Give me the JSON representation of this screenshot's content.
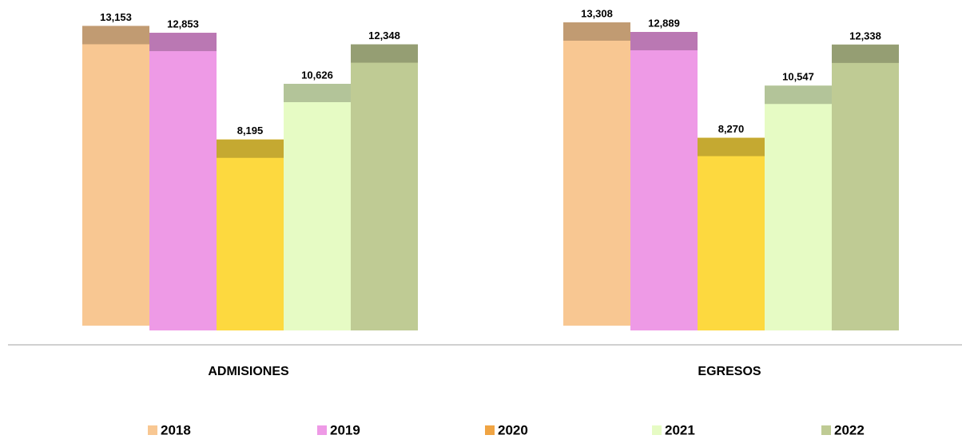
{
  "chart_data": {
    "type": "bar",
    "categories": [
      "ADMISIONES",
      "EGRESOS"
    ],
    "series": [
      {
        "name": "2018",
        "color": "#f8c792",
        "legend_color": "#f8c792",
        "values": [
          13153,
          13308
        ],
        "value_labels": [
          "13,153",
          "13,308"
        ]
      },
      {
        "name": "2019",
        "color": "#ee9ae6",
        "legend_color": "#ee9ae6",
        "values": [
          12853,
          12889
        ],
        "value_labels": [
          "12,853",
          "12,889"
        ]
      },
      {
        "name": "2020",
        "color": "#fdd93f",
        "legend_color": "#f0a443",
        "values": [
          8195,
          8270
        ],
        "value_labels": [
          "8,195",
          "8,270"
        ]
      },
      {
        "name": "2021",
        "color": "#e6fbc4",
        "legend_color": "#e6fbc4",
        "values": [
          10626,
          10547
        ],
        "value_labels": [
          "10,626",
          "10,547"
        ]
      },
      {
        "name": "2022",
        "color": "#bfcb94",
        "legend_color": "#bfcb94",
        "values": [
          12348,
          12338
        ],
        "value_labels": [
          "12,348",
          "12,338"
        ]
      }
    ]
  }
}
